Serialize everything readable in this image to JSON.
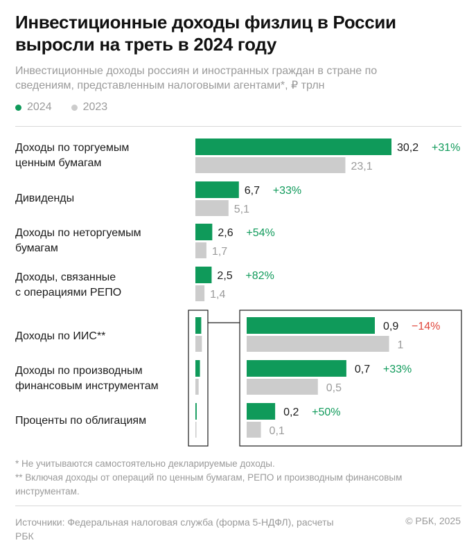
{
  "title": "Инвестиционные доходы физлиц в России выросли на треть в 2024 году",
  "subtitle": "Инвестиционные доходы россиян и иностранных граждан в стране по сведениям, представленным налоговыми агентами*, ₽ трлн",
  "legend": [
    {
      "label": "2024",
      "color": "#0f9a5a"
    },
    {
      "label": "2023",
      "color": "#cccccc"
    }
  ],
  "colors": {
    "current": "#0f9a5a",
    "previous": "#cccccc",
    "positive": "#0f9a5a",
    "negative": "#e0453a"
  },
  "chart_data": {
    "type": "bar",
    "orientation": "horizontal",
    "series": [
      {
        "name": "2024",
        "values": [
          30.2,
          6.7,
          2.6,
          2.5,
          0.9,
          0.7,
          0.2
        ]
      },
      {
        "name": "2023",
        "values": [
          23.1,
          5.1,
          1.7,
          1.4,
          1.0,
          0.5,
          0.1
        ]
      }
    ],
    "categories": [
      "Доходы по торгуемым ценным бумагам",
      "Дивиденды",
      "Доходы по неторгуемым бумагам",
      "Доходы, связанные с операциями РЕПО",
      "Доходы по ИИС**",
      "Доходы по производным финансовым инструментам",
      "Проценты по облигациям"
    ],
    "label_lines": [
      [
        "Доходы по торгуемым",
        "ценным бумагам"
      ],
      [
        "Дивиденды"
      ],
      [
        "Доходы по неторгуемым",
        "бумагам"
      ],
      [
        "Доходы, связанные",
        "с операциями РЕПО"
      ],
      [
        "Доходы по ИИС**"
      ],
      [
        "Доходы по производным",
        "финансовым инструментам"
      ],
      [
        "Проценты по облигациям"
      ]
    ],
    "value_labels_2024": [
      "30,2",
      "6,7",
      "2,6",
      "2,5",
      "0,9",
      "0,7",
      "0,2"
    ],
    "value_labels_2023": [
      "23,1",
      "5,1",
      "1,7",
      "1,4",
      "1",
      "0,5",
      "0,1"
    ],
    "change_labels": [
      "+31%",
      "+33%",
      "+54%",
      "+82%",
      "−14%",
      "+33%",
      "+50%"
    ],
    "change_sign": [
      "pos",
      "pos",
      "pos",
      "pos",
      "neg",
      "pos",
      "pos"
    ],
    "inset": {
      "categories_index": [
        4,
        5,
        6
      ],
      "xlim": [
        0,
        1.0
      ]
    },
    "xlim": [
      0,
      32
    ],
    "grid": false,
    "legend_position": "top-left"
  },
  "footnotes": [
    "* Не учитываются самостоятельно декларируемые доходы.",
    "** Включая доходы от операций по ценным бумагам, РЕПО и производным финансовым инструментам."
  ],
  "sources": "Источники: Федеральная налоговая служба (форма 5-НДФЛ), расчеты РБК",
  "copyright": "© РБК, 2025"
}
